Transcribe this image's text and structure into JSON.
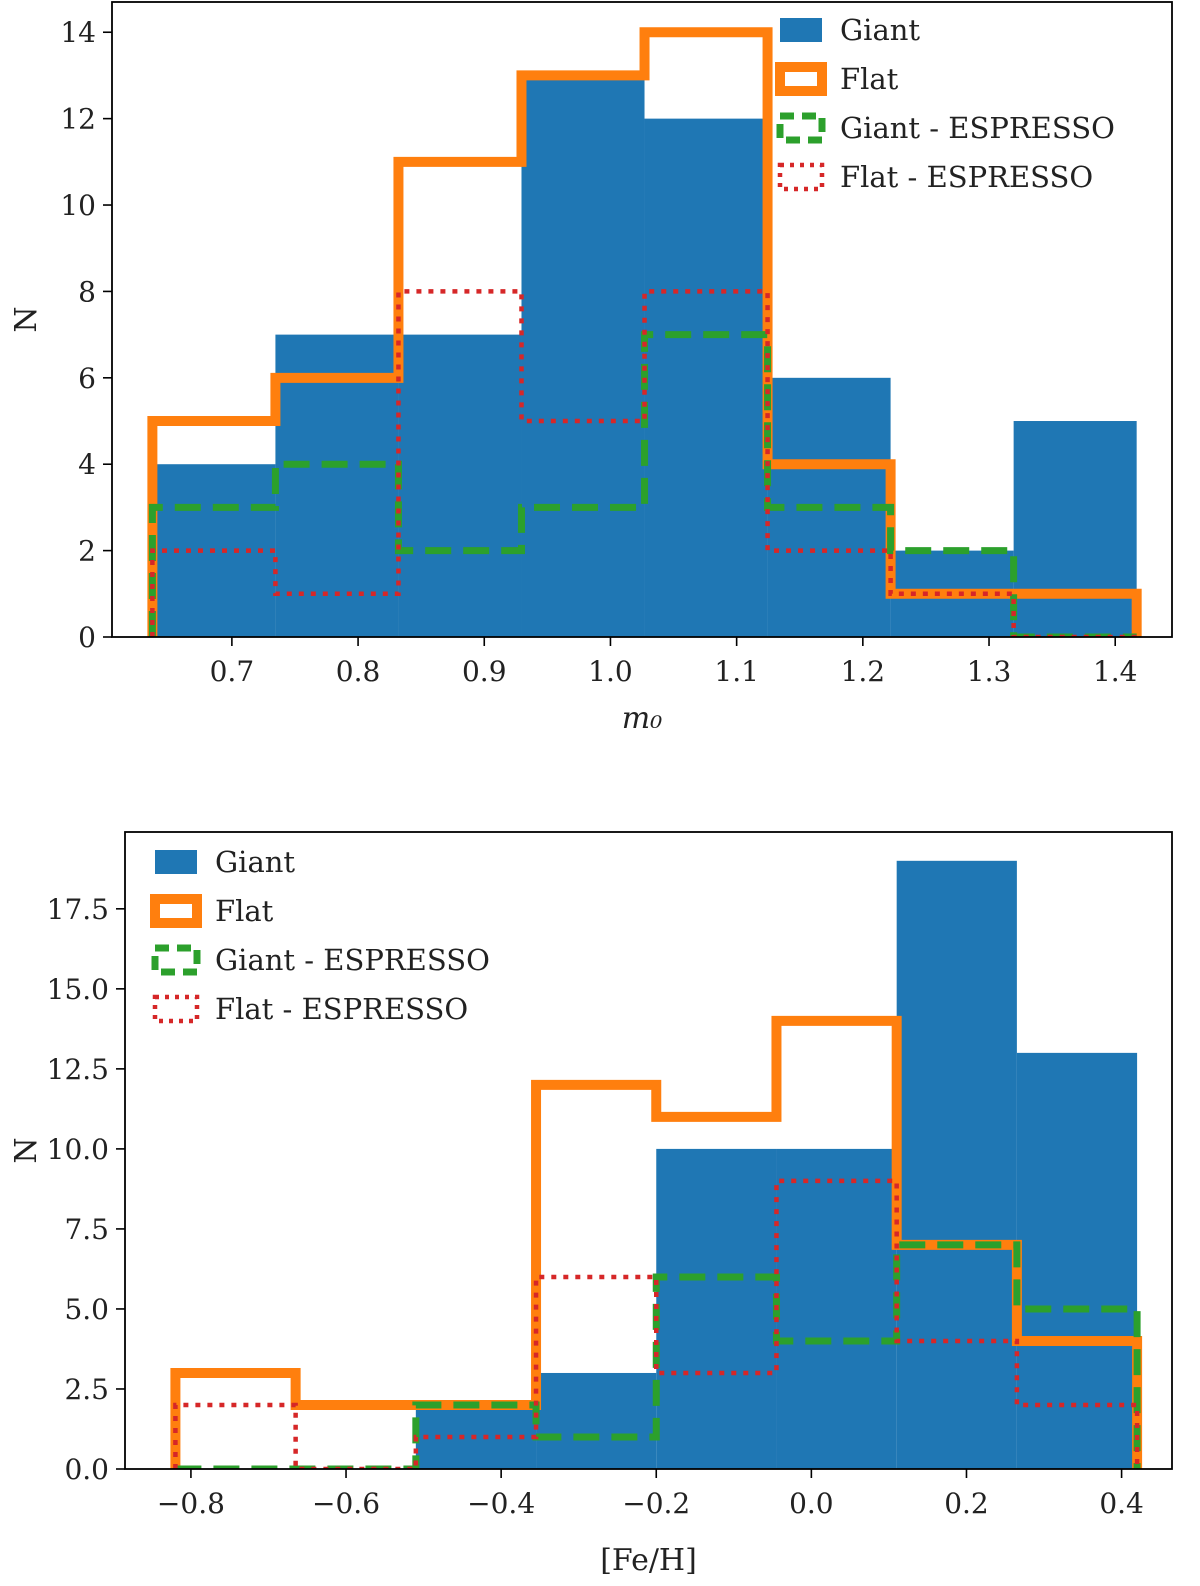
{
  "chart_data": [
    {
      "type": "bar",
      "subtype": "histogram",
      "xlabel": "m₀",
      "ylabel": "N",
      "xlim": [
        0.605,
        1.445
      ],
      "ylim": [
        0,
        14.7
      ],
      "bin_edges": [
        0.637,
        0.7345,
        0.832,
        0.9295,
        1.027,
        1.1245,
        1.222,
        1.3195,
        1.417
      ],
      "x_ticks": [
        0.7,
        0.8,
        0.9,
        1.0,
        1.1,
        1.2,
        1.3,
        1.4
      ],
      "x_tick_labels": [
        "0.7",
        "0.8",
        "0.9",
        "1.0",
        "1.1",
        "1.2",
        "1.3",
        "1.4"
      ],
      "y_ticks": [
        0,
        2,
        4,
        6,
        8,
        10,
        12,
        14
      ],
      "y_tick_labels": [
        "0",
        "2",
        "4",
        "6",
        "8",
        "10",
        "12",
        "14"
      ],
      "legend_position": "top-right",
      "grid": false,
      "series": [
        {
          "name": "Giant",
          "style": "filled",
          "color": "#1f77b4",
          "values": [
            4,
            7,
            7,
            13,
            12,
            6,
            2,
            5
          ]
        },
        {
          "name": "Flat",
          "style": "step-solid",
          "color": "#ff7f0e",
          "values": [
            5,
            6,
            11,
            13,
            14,
            4,
            1,
            1
          ]
        },
        {
          "name": "Giant - ESPRESSO",
          "style": "step-dashed",
          "color": "#2ca02c",
          "values": [
            3,
            4,
            2,
            3,
            7,
            3,
            2,
            0
          ]
        },
        {
          "name": "Flat - ESPRESSO",
          "style": "step-dotted",
          "color": "#d62728",
          "values": [
            2,
            1,
            8,
            5,
            8,
            2,
            1,
            0
          ]
        }
      ]
    },
    {
      "type": "bar",
      "subtype": "histogram",
      "xlabel": "[Fe/H]",
      "ylabel": "N",
      "xlim": [
        -0.885,
        0.465
      ],
      "ylim": [
        0,
        19.9
      ],
      "bin_edges": [
        -0.82,
        -0.665,
        -0.51,
        -0.355,
        -0.2,
        -0.045,
        0.11,
        0.265,
        0.42
      ],
      "x_ticks": [
        -0.8,
        -0.6,
        -0.4,
        -0.2,
        0.0,
        0.2,
        0.4
      ],
      "x_tick_labels": [
        "−0.8",
        "−0.6",
        "−0.4",
        "−0.2",
        "0.0",
        "0.2",
        "0.4"
      ],
      "y_ticks": [
        0,
        2.5,
        5,
        7.5,
        10,
        12.5,
        15,
        17.5
      ],
      "y_tick_labels": [
        "0.0",
        "2.5",
        "5.0",
        "7.5",
        "10.0",
        "12.5",
        "15.0",
        "17.5"
      ],
      "legend_position": "top-left",
      "grid": false,
      "series": [
        {
          "name": "Giant",
          "style": "filled",
          "color": "#1f77b4",
          "values": [
            0,
            0,
            2,
            3,
            10,
            10,
            19,
            13
          ]
        },
        {
          "name": "Flat",
          "style": "step-solid",
          "color": "#ff7f0e",
          "values": [
            3,
            2,
            2,
            12,
            11,
            14,
            7,
            4
          ]
        },
        {
          "name": "Giant - ESPRESSO",
          "style": "step-dashed",
          "color": "#2ca02c",
          "values": [
            0,
            0,
            2,
            1,
            6,
            4,
            7,
            5
          ]
        },
        {
          "name": "Flat - ESPRESSO",
          "style": "step-dotted",
          "color": "#d62728",
          "values": [
            2,
            0,
            1,
            6,
            3,
            9,
            4,
            2
          ]
        }
      ]
    }
  ]
}
